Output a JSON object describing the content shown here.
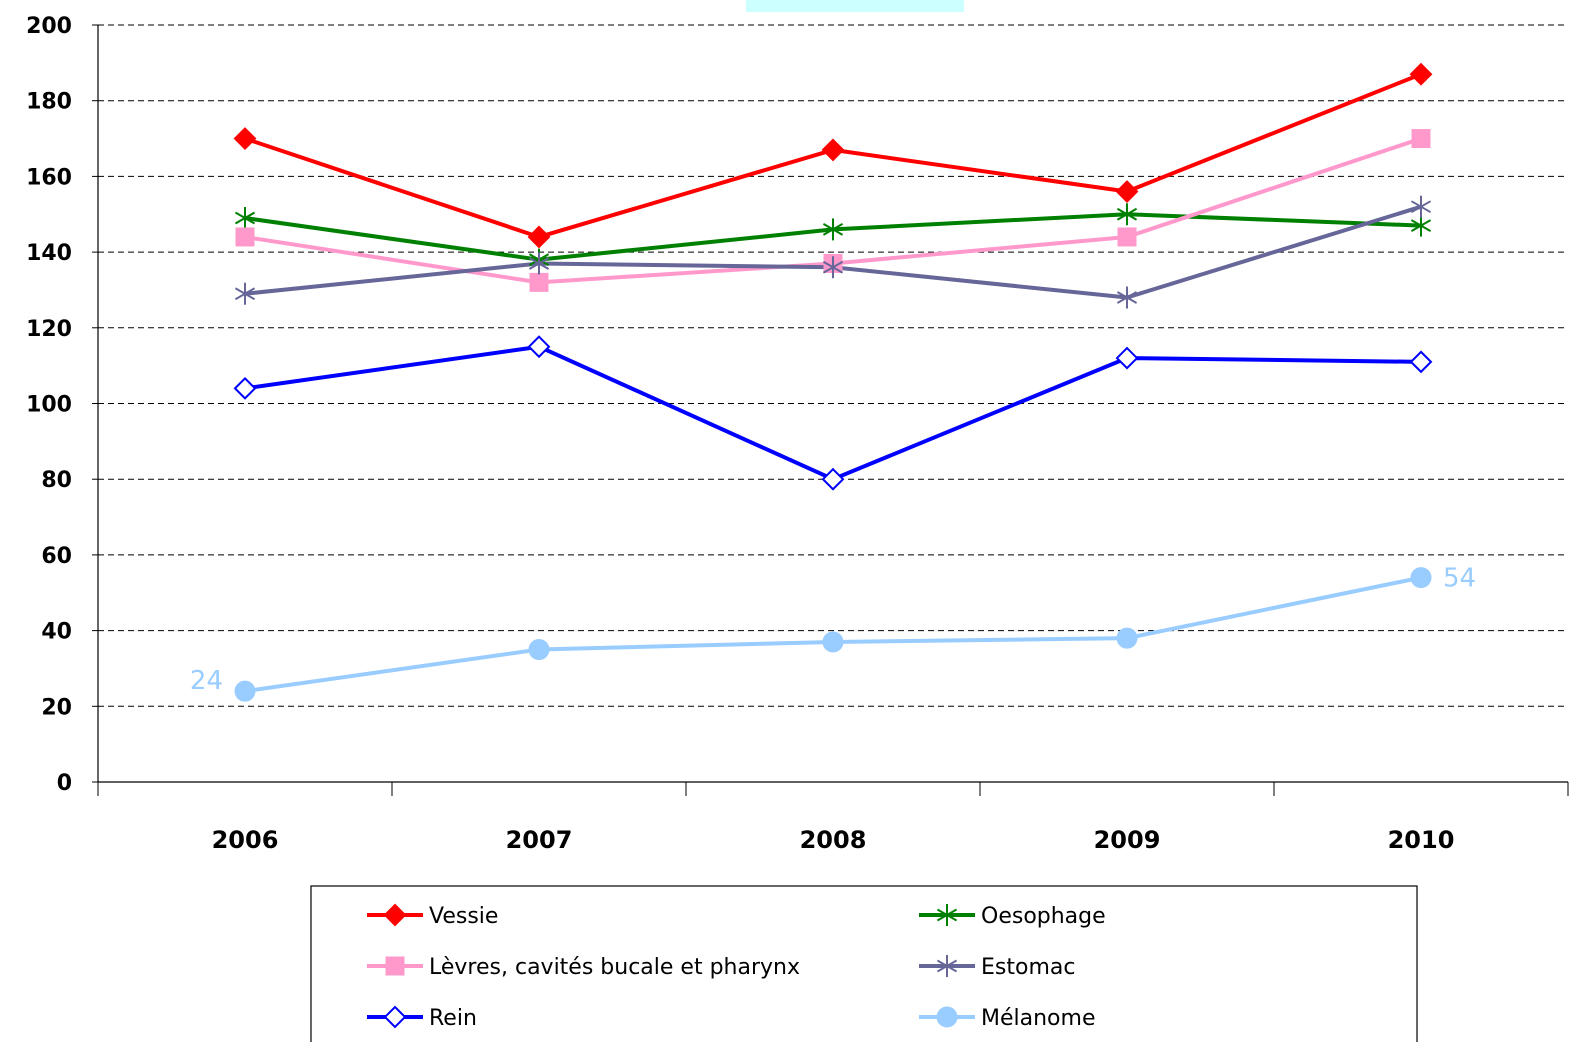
{
  "chart_data": {
    "type": "line",
    "title": "",
    "xlabel": "",
    "ylabel": "",
    "categories": [
      "2006",
      "2007",
      "2008",
      "2009",
      "2010"
    ],
    "ylim": [
      0,
      200
    ],
    "yticks": [
      "0",
      "20",
      "40",
      "60",
      "80",
      "100",
      "120",
      "140",
      "160",
      "180",
      "200"
    ],
    "grid": "horizontal dashed",
    "legend_position": "bottom",
    "series": [
      {
        "name": "Vessie",
        "values": [
          170,
          144,
          167,
          156,
          187
        ],
        "color": "#ff0000",
        "marker": "diamond-filled"
      },
      {
        "name": "Oesophage",
        "values": [
          149,
          138,
          146,
          150,
          147
        ],
        "color": "#008000",
        "marker": "asterisk"
      },
      {
        "name": "Lèvres, cavités bucale et pharynx",
        "values": [
          144,
          132,
          137,
          144,
          170
        ],
        "color": "#ff99cc",
        "marker": "square-filled"
      },
      {
        "name": "Estomac",
        "values": [
          129,
          137,
          136,
          128,
          152
        ],
        "color": "#666699",
        "marker": "asterisk"
      },
      {
        "name": "Rein",
        "values": [
          104,
          115,
          80,
          112,
          111
        ],
        "color": "#0000ff",
        "marker": "diamond-open"
      },
      {
        "name": "Mélanome",
        "values": [
          24,
          35,
          37,
          38,
          54
        ],
        "color": "#99ccff",
        "marker": "circle-filled"
      }
    ],
    "annotations": [
      {
        "series": "Mélanome",
        "category": "2006",
        "text": "24"
      },
      {
        "series": "Mélanome",
        "category": "2010",
        "text": "54"
      }
    ]
  }
}
